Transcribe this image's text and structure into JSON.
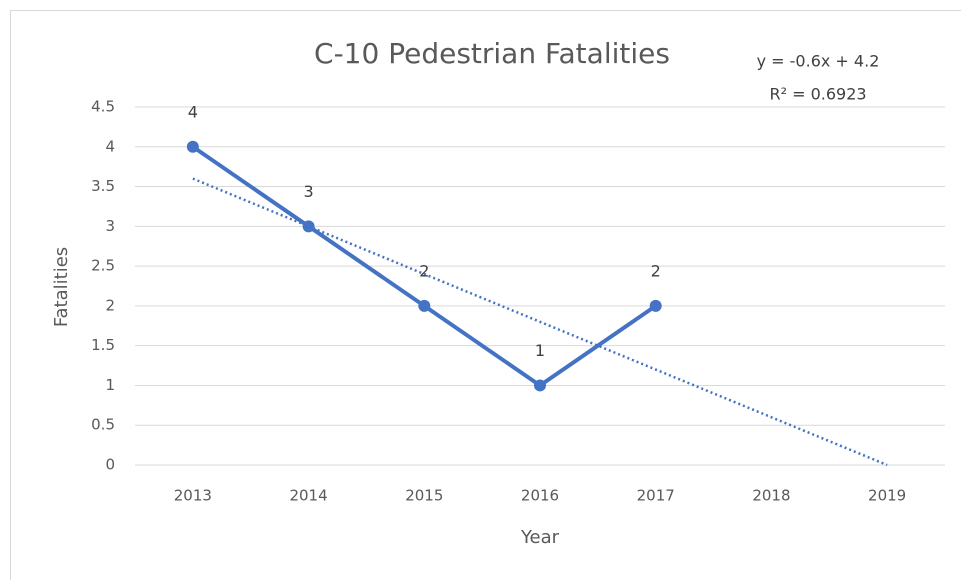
{
  "chart_data": {
    "type": "line",
    "title": "C-10 Pedestrian Fatalities",
    "x_label": "Year",
    "y_label": "Fatalities",
    "categories": [
      "2013",
      "2014",
      "2015",
      "2016",
      "2017",
      "2018",
      "2019"
    ],
    "series": [
      {
        "color": "#4472c4",
        "values": [
          4,
          3,
          2,
          1,
          2,
          null,
          null
        ]
      }
    ],
    "trendline": {
      "color": "#4472c4",
      "values": [
        3.6,
        3.0,
        2.4,
        1.8,
        1.2,
        0.6,
        0.0
      ]
    },
    "annotations": [
      "y = -0.6x + 4.2",
      "R² = 0.6923"
    ],
    "ylim": [
      0,
      4.5
    ],
    "yticks": [
      0,
      0.5,
      1,
      1.5,
      2,
      2.5,
      3,
      3.5,
      4,
      4.5
    ],
    "grid": true
  }
}
